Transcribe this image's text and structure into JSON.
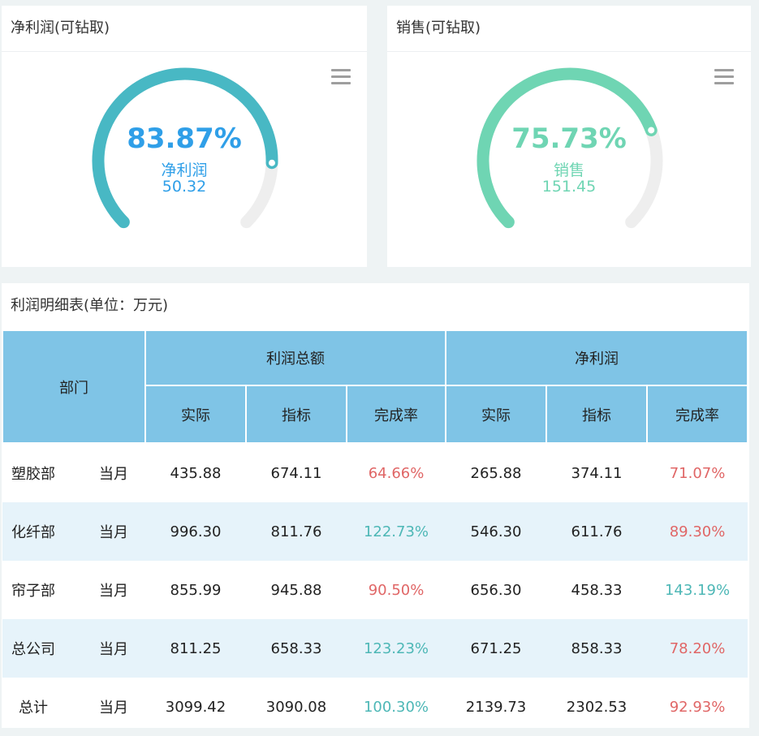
{
  "gauges": [
    {
      "title": "净利润(可钻取)",
      "percent_text": "83.87%",
      "percent": 83.87,
      "label": "净利润",
      "value": "50.32",
      "color": "#48b8c4",
      "text_color": "#2f9fe8",
      "track_color": "#eeeeee",
      "menu_icon": "hamburger-menu-icon"
    },
    {
      "title": "销售(可钻取)",
      "percent_text": "75.73%",
      "percent": 75.73,
      "label": "销售",
      "value": "151.45",
      "color": "#6fd5b3",
      "text_color": "#6fd5b3",
      "track_color": "#eeeeee",
      "menu_icon": "hamburger-menu-icon"
    }
  ],
  "table": {
    "title": "利润明细表(单位：万元)",
    "header_dept": "部门",
    "group_headers": [
      "利润总额",
      "净利润"
    ],
    "sub_headers": [
      "实际",
      "指标",
      "完成率",
      "实际",
      "指标",
      "完成率"
    ],
    "rows": [
      {
        "dept": "塑胶部",
        "period": "当月",
        "cells": [
          "435.88",
          "674.11",
          "64.66%",
          "265.88",
          "374.11",
          "71.07%"
        ],
        "status": [
          "",
          "",
          "bad",
          "",
          "",
          "bad"
        ]
      },
      {
        "dept": "化纤部",
        "period": "当月",
        "cells": [
          "996.30",
          "811.76",
          "122.73%",
          "546.30",
          "611.76",
          "89.30%"
        ],
        "status": [
          "",
          "",
          "good",
          "",
          "",
          "bad"
        ]
      },
      {
        "dept": "帘子部",
        "period": "当月",
        "cells": [
          "855.99",
          "945.88",
          "90.50%",
          "656.30",
          "458.33",
          "143.19%"
        ],
        "status": [
          "",
          "",
          "bad",
          "",
          "",
          "good"
        ]
      },
      {
        "dept": "总公司",
        "period": "当月",
        "cells": [
          "811.25",
          "658.33",
          "123.23%",
          "671.25",
          "858.33",
          "78.20%"
        ],
        "status": [
          "",
          "",
          "good",
          "",
          "",
          "bad"
        ]
      },
      {
        "dept": "总计",
        "period": "当月",
        "cells": [
          "3099.42",
          "3090.08",
          "100.30%",
          "2139.73",
          "2302.53",
          "92.93%"
        ],
        "status": [
          "",
          "",
          "good",
          "",
          "",
          "bad"
        ]
      }
    ]
  }
}
